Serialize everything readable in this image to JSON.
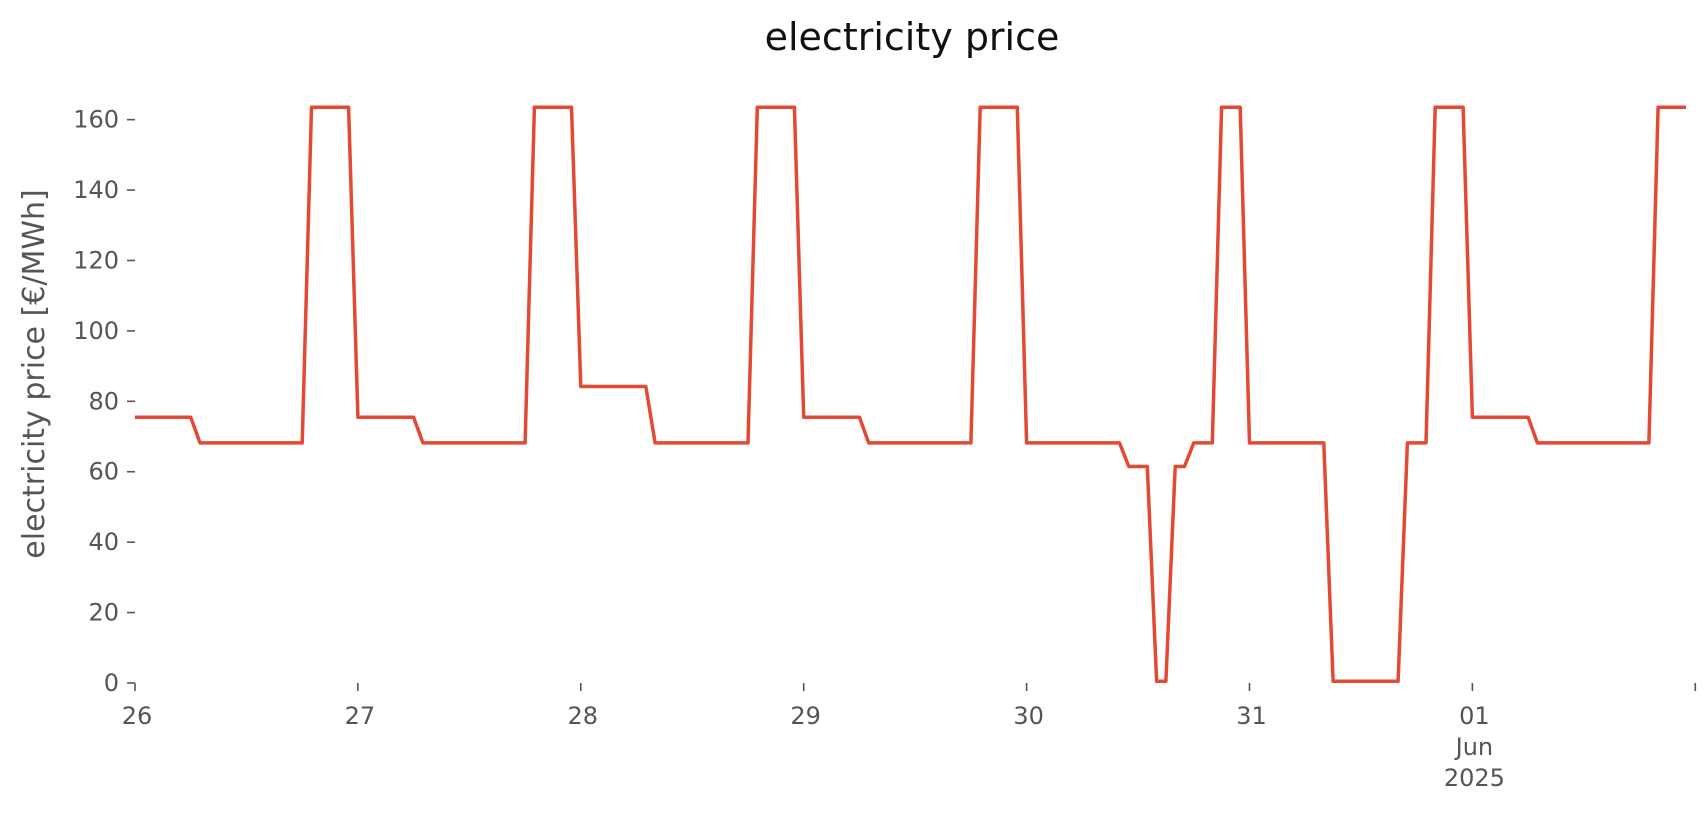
{
  "chart_data": {
    "type": "line",
    "title": "electricity price",
    "ylabel": "electricity price [€/MWh]",
    "xlabel": "",
    "ylim": [
      0,
      167
    ],
    "xlim": [
      "2025-05-26 00:00",
      "2025-06-01 23:00"
    ],
    "yticks": [
      0,
      20,
      40,
      60,
      80,
      100,
      120,
      140,
      160
    ],
    "xticks": [
      {
        "date": "2025-05-26",
        "lines": [
          "26"
        ]
      },
      {
        "date": "2025-05-27",
        "lines": [
          "27"
        ]
      },
      {
        "date": "2025-05-28",
        "lines": [
          "28"
        ]
      },
      {
        "date": "2025-05-29",
        "lines": [
          "29"
        ]
      },
      {
        "date": "2025-05-30",
        "lines": [
          "30"
        ]
      },
      {
        "date": "2025-05-31",
        "lines": [
          "31"
        ]
      },
      {
        "date": "2025-06-01",
        "lines": [
          "01",
          "Jun",
          "2025"
        ]
      },
      {
        "date": "2025-06-02",
        "lines": [
          ""
        ]
      }
    ],
    "grid": false,
    "color": "#E24A33",
    "series": [
      {
        "name": "",
        "points": [
          [
            "2025-05-26 00:00",
            75.5
          ],
          [
            "2025-05-26 06:00",
            75.5
          ],
          [
            "2025-05-26 07:00",
            68.2
          ],
          [
            "2025-05-26 18:00",
            68.2
          ],
          [
            "2025-05-26 19:00",
            163.5
          ],
          [
            "2025-05-26 23:00",
            163.5
          ],
          [
            "2025-05-27 00:00",
            75.5
          ],
          [
            "2025-05-27 06:00",
            75.5
          ],
          [
            "2025-05-27 07:00",
            68.2
          ],
          [
            "2025-05-27 18:00",
            68.2
          ],
          [
            "2025-05-27 19:00",
            163.5
          ],
          [
            "2025-05-27 23:00",
            163.5
          ],
          [
            "2025-05-28 00:00",
            84.2
          ],
          [
            "2025-05-28 07:00",
            84.2
          ],
          [
            "2025-05-28 08:00",
            68.2
          ],
          [
            "2025-05-28 18:00",
            68.2
          ],
          [
            "2025-05-28 19:00",
            163.5
          ],
          [
            "2025-05-28 23:00",
            163.5
          ],
          [
            "2025-05-29 00:00",
            75.5
          ],
          [
            "2025-05-29 06:00",
            75.5
          ],
          [
            "2025-05-29 07:00",
            68.2
          ],
          [
            "2025-05-29 18:00",
            68.2
          ],
          [
            "2025-05-29 19:00",
            163.5
          ],
          [
            "2025-05-29 23:00",
            163.5
          ],
          [
            "2025-05-30 00:00",
            68.2
          ],
          [
            "2025-05-30 10:00",
            68.2
          ],
          [
            "2025-05-30 11:00",
            61.5
          ],
          [
            "2025-05-30 13:00",
            61.5
          ],
          [
            "2025-05-30 14:00",
            0.5
          ],
          [
            "2025-05-30 15:00",
            0.5
          ],
          [
            "2025-05-30 16:00",
            61.5
          ],
          [
            "2025-05-30 17:00",
            61.5
          ],
          [
            "2025-05-30 18:00",
            68.2
          ],
          [
            "2025-05-30 20:00",
            68.2
          ],
          [
            "2025-05-30 21:00",
            163.5
          ],
          [
            "2025-05-30 23:00",
            163.5
          ],
          [
            "2025-05-31 00:00",
            68.2
          ],
          [
            "2025-05-31 08:00",
            68.2
          ],
          [
            "2025-05-31 09:00",
            0.5
          ],
          [
            "2025-05-31 16:00",
            0.5
          ],
          [
            "2025-05-31 17:00",
            68.2
          ],
          [
            "2025-05-31 19:00",
            68.2
          ],
          [
            "2025-05-31 20:00",
            163.5
          ],
          [
            "2025-05-31 23:00",
            163.5
          ],
          [
            "2025-06-01 00:00",
            75.5
          ],
          [
            "2025-06-01 06:00",
            75.5
          ],
          [
            "2025-06-01 07:00",
            68.2
          ],
          [
            "2025-06-01 19:00",
            68.2
          ],
          [
            "2025-06-01 20:00",
            163.5
          ],
          [
            "2025-06-01 23:00",
            163.5
          ]
        ]
      }
    ]
  }
}
